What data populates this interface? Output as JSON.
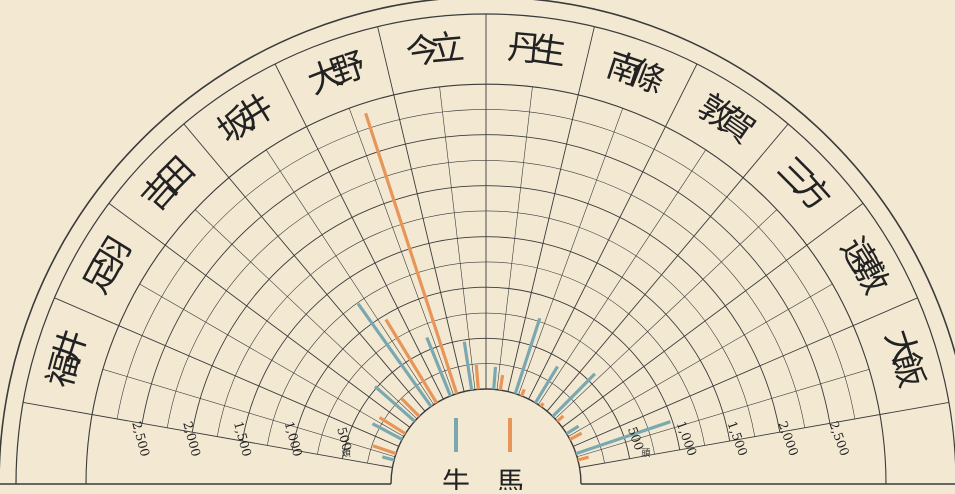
{
  "chart_data": {
    "type": "radial-bar",
    "title": "",
    "r_unit": "頭",
    "r_ticks": [
      500,
      1000,
      1500,
      2000,
      2500
    ],
    "r_tick_labels": [
      "500",
      "1,000",
      "1,500",
      "2,000",
      "2,500"
    ],
    "rmax": 3000,
    "categories": [
      "福井",
      "足羽",
      "吉田",
      "坂井",
      "大野",
      "今立",
      "丹生",
      "南條",
      "敦賀",
      "三方",
      "遠敷",
      "大飯"
    ],
    "legend": {
      "ox": "牛",
      "horse": "馬"
    },
    "series": [
      {
        "key": "ox",
        "values": [
          120,
          330,
          520,
          1240,
          620,
          480,
          220,
          780,
          420,
          590,
          140,
          980
        ],
        "color": "#7aa8b0"
      },
      {
        "key": "horse",
        "values": [
          240,
          300,
          250,
          960,
          2900,
          240,
          150,
          70,
          40,
          80,
          130,
          110
        ],
        "color": "#e8955a"
      }
    ]
  },
  "colors": {
    "background": "#f3e9d3",
    "grid": "#3b3b3b",
    "ox": "#7aa8b0",
    "horse": "#e8955a"
  }
}
